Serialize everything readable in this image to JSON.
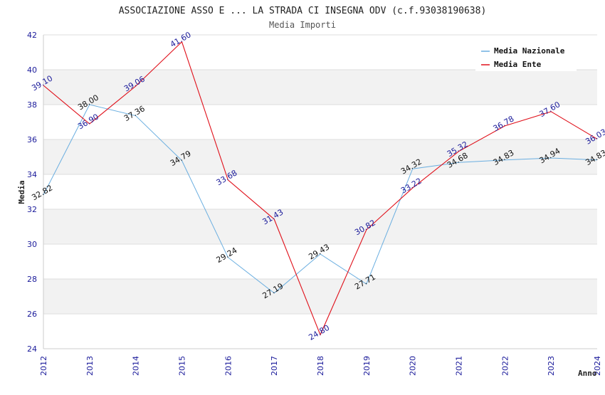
{
  "chart_data": {
    "type": "line",
    "title": "ASSOCIAZIONE ASSO E ... LA STRADA CI INSEGNA ODV (c.f.93038190638)",
    "subtitle": "Media Importi",
    "xlabel": "Anno",
    "ylabel": "Media",
    "ylim": [
      24,
      42
    ],
    "yticks": [
      24,
      26,
      28,
      30,
      32,
      34,
      36,
      38,
      40,
      42
    ],
    "x": [
      "2012",
      "2013",
      "2014",
      "2015",
      "2016",
      "2017",
      "2018",
      "2019",
      "2020",
      "2021",
      "2022",
      "2023",
      "2024"
    ],
    "grid": true,
    "legend_position": "top-right",
    "series": [
      {
        "name": "Media Nazionale",
        "color": "#6aaee0",
        "label_color": "#111111",
        "values": [
          32.82,
          38.0,
          37.36,
          34.79,
          29.24,
          27.19,
          29.43,
          27.71,
          34.32,
          34.68,
          34.83,
          34.94,
          34.83
        ]
      },
      {
        "name": "Media Ente",
        "color": "#e0101a",
        "label_color": "#1a1a9a",
        "values": [
          39.1,
          36.9,
          39.06,
          41.6,
          33.68,
          31.43,
          24.8,
          30.82,
          33.22,
          35.32,
          36.78,
          37.6,
          36.03
        ]
      }
    ]
  }
}
